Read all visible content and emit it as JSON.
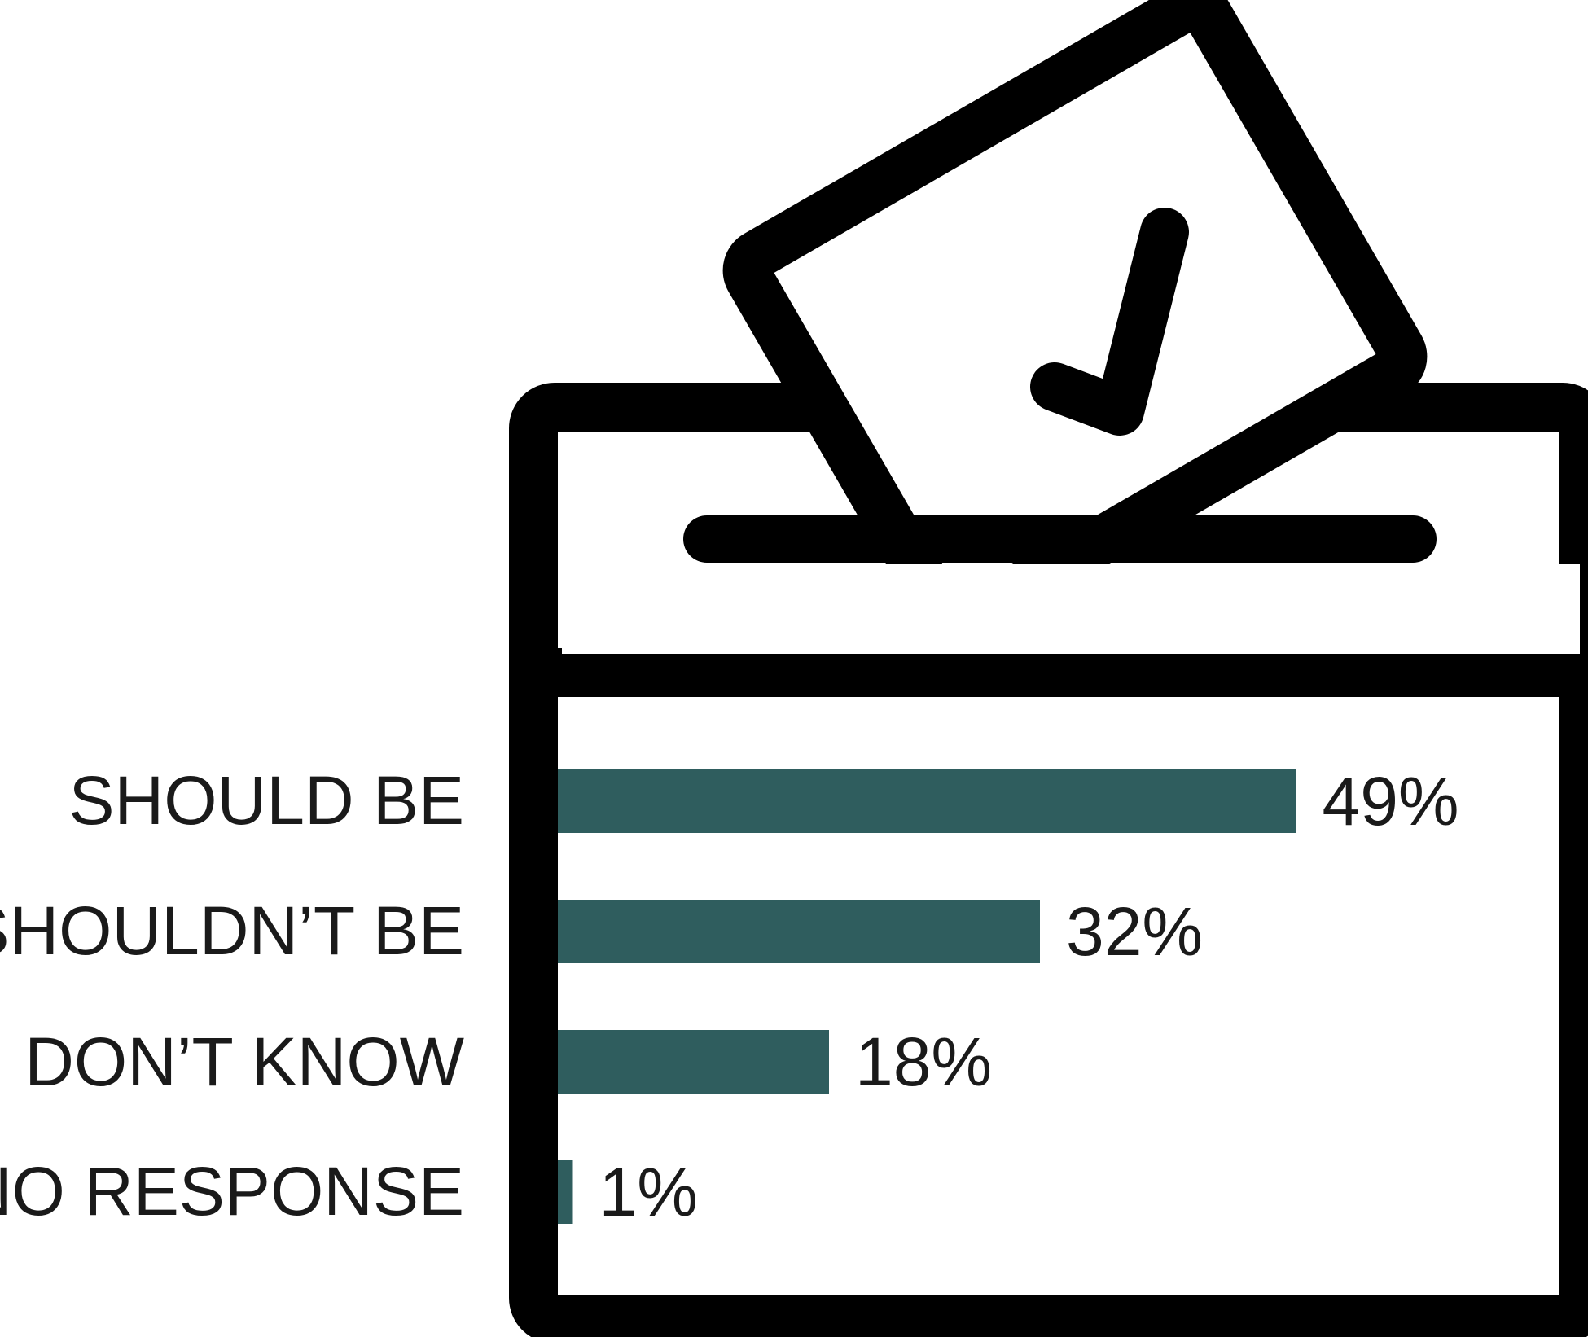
{
  "colors": {
    "bar": "#2f5d5e",
    "outline": "#000000",
    "background": "#ffffff",
    "text": "#1a1a1a"
  },
  "icon": "ballot-box-icon",
  "chart_data": {
    "type": "bar",
    "orientation": "horizontal",
    "categories": [
      "SHOULD BE",
      "SHOULDN’T BE",
      "DON’T KNOW",
      "NO RESPONSE"
    ],
    "values": [
      49,
      32,
      18,
      1
    ],
    "value_labels": [
      "49%",
      "32%",
      "18%",
      "1%"
    ],
    "xlim": [
      0,
      100
    ],
    "grid": false,
    "legend": "none"
  }
}
